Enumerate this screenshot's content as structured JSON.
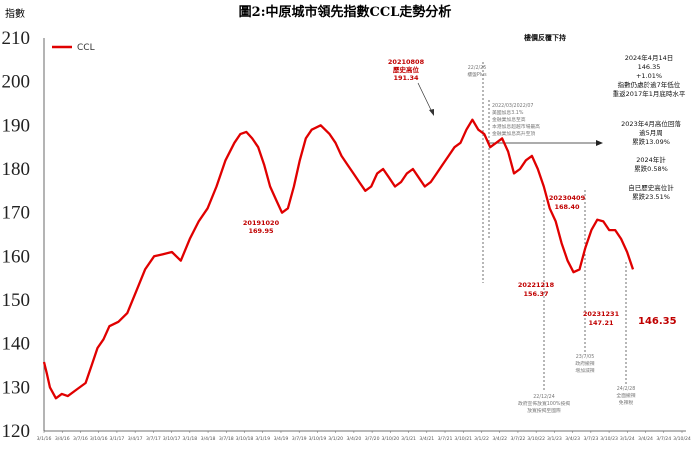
{
  "chart_data": {
    "type": "line",
    "title": "圖2:中原城市領先指數CCL走勢分析",
    "ylabel": "指數",
    "ylim": [
      120,
      210
    ],
    "yticks": [
      120,
      130,
      140,
      150,
      160,
      170,
      180,
      190,
      200,
      210
    ],
    "grid": false,
    "legend_position": "top-left",
    "series": [
      {
        "name": "CCL",
        "color": "#e00000",
        "x": [
          0,
          1,
          2,
          4,
          6,
          8,
          11,
          14,
          16,
          18,
          20,
          22,
          25,
          28,
          31,
          34,
          37,
          40,
          43,
          46,
          49,
          52,
          55,
          58,
          61,
          64,
          66,
          68,
          70,
          72,
          74,
          76,
          78,
          80,
          82,
          84,
          86,
          88,
          90,
          93,
          96,
          98,
          100,
          102,
          104,
          106,
          108,
          110,
          112,
          114,
          116,
          118,
          120,
          122,
          124,
          126,
          128,
          130,
          132,
          134,
          136,
          138,
          140,
          142,
          144,
          146,
          148,
          150,
          152,
          154,
          156,
          158,
          160,
          162,
          164,
          166,
          168,
          170,
          172,
          174,
          176,
          178,
          180,
          182,
          184,
          186,
          188,
          190,
          192,
          194,
          196,
          198
        ],
        "y": [
          135.8,
          133,
          130,
          127.5,
          128.5,
          128,
          129.5,
          131,
          135,
          139,
          141,
          144,
          145,
          147,
          152,
          157,
          160,
          160.5,
          161,
          159,
          164,
          168,
          171,
          176,
          182,
          186,
          188,
          188.5,
          187,
          185,
          181,
          176,
          173,
          170,
          171,
          176,
          182,
          187,
          189,
          190,
          188,
          186,
          183,
          181,
          179,
          177,
          175,
          176,
          179,
          180,
          178,
          176,
          177,
          179,
          180,
          178,
          176,
          177,
          179,
          181,
          183,
          185,
          186,
          189,
          191.3,
          189,
          188,
          185,
          186,
          187,
          184,
          179,
          180,
          182,
          183,
          180,
          176,
          171,
          168,
          163,
          159,
          156.37,
          157,
          162,
          166,
          168.4,
          168,
          166,
          166,
          164,
          161,
          157
        ]
      }
    ],
    "x_tick_labels": [
      "3/1/16",
      "3/4/16",
      "3/7/16",
      "3/10/16",
      "3/1/17",
      "3/4/17",
      "3/7/17",
      "3/10/17",
      "3/1/18",
      "3/4/18",
      "3/7/18",
      "3/10/18",
      "3/1/19",
      "3/4/19",
      "3/7/19",
      "3/10/19",
      "3/1/20",
      "3/4/20",
      "3/7/20",
      "3/10/20",
      "3/1/21",
      "3/4/21",
      "3/7/21",
      "3/10/21",
      "3/1/22",
      "3/4/22",
      "3/7/22",
      "3/10/22",
      "3/1/23",
      "3/4/23",
      "3/7/23",
      "3/10/23",
      "3/1/24",
      "3/4/24",
      "3/7/24",
      "3/10/24"
    ],
    "last_value_label": "146.35",
    "annotations": {
      "peak": [
        "20210808",
        "歷史高位",
        "191.34"
      ],
      "low2019": [
        "20191020",
        "169.95"
      ],
      "low2022": [
        "20221218",
        "156.37"
      ],
      "high2023": [
        "20230409",
        "168.40"
      ],
      "low2023": [
        "20231231",
        "147.21"
      ],
      "scheme_title": "樓價反覆下持",
      "notes_right": [
        "2024年4月14日",
        "146.35",
        "+1.01%",
        "指數仍處於逾7年低位",
        "重返2017年1月底時水平"
      ],
      "notes_right2": [
        "2023年4月高位回落",
        "逾5月周",
        "累跌13.09%"
      ],
      "notes_right3": [
        "2024年計",
        "累跌0.58%"
      ],
      "notes_right4": [
        "自已歷史高位計",
        "累跌23.51%"
      ],
      "gray_top": [
        "22/2/25",
        "樓盤Plus"
      ],
      "gray_mid": [
        "2022/03/2022/07",
        "美國加息3.1%",
        "金融業加息至高",
        "本港加息超越市場最高",
        "金融業加息高升至頂"
      ],
      "gray_b1": [
        "22/12/24",
        "政府宣佈放寬100%按揭",
        "放寬按揭至國際"
      ],
      "gray_b2": [
        "23/7/05",
        "政府撤辣",
        "增加減辣"
      ],
      "gray_b3": [
        "24/2/28",
        "全面撤辣",
        "免辣稅"
      ]
    }
  }
}
